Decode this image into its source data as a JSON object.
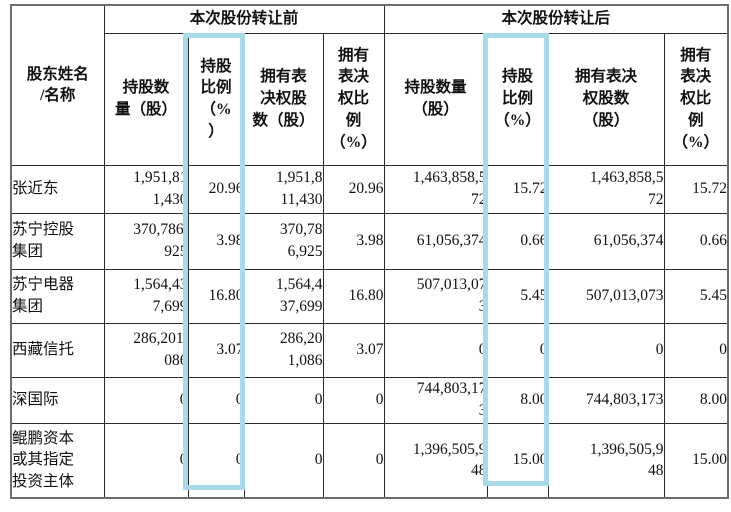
{
  "colors": {
    "highlight": "#a7dbe8"
  },
  "table": {
    "corner_header": "股东姓名\n/名称",
    "groups": [
      {
        "label": "本次股份转让前"
      },
      {
        "label": "本次股份转让后"
      }
    ],
    "columns": [
      "持股数\n量（股）",
      "持股\n比例\n（%\n）",
      "拥有表\n决权股\n数（股）",
      "拥有\n表决\n权比\n例\n（%）",
      "持股数量\n（股）",
      "持股\n比例\n（%）",
      "拥有表决\n权股数\n（股）",
      "拥有\n表决\n权比\n例\n（%）"
    ],
    "rows": [
      {
        "name": "张近东",
        "cells": [
          "1,951,81\n1,430",
          "20.96",
          "1,951,8\n11,430",
          "20.96",
          "1,463,858,5\n72",
          "15.72",
          "1,463,858,5\n72",
          "15.72"
        ]
      },
      {
        "name": "苏宁控股\n集团",
        "cells": [
          "370,786,\n925",
          "3.98",
          "370,78\n6,925",
          "3.98",
          "61,056,374",
          "0.66",
          "61,056,374",
          "0.66"
        ]
      },
      {
        "name": "苏宁电器\n集团",
        "cells": [
          "1,564,43\n7,699",
          "16.80",
          "1,564,4\n37,699",
          "16.80",
          "507,013,07\n3",
          "5.45",
          "507,013,073",
          "5.45"
        ]
      },
      {
        "name": "西藏信托",
        "cells": [
          "286,201,\n086",
          "3.07",
          "286,20\n1,086",
          "3.07",
          "0",
          "0",
          "0",
          "0"
        ]
      },
      {
        "name": "深国际",
        "cells": [
          "0",
          "0",
          "0",
          "0",
          "744,803,17\n3",
          "8.00",
          "744,803,173",
          "8.00"
        ]
      },
      {
        "name": "鲲鹏资本\n或其指定\n投资主体",
        "cells": [
          "0",
          "0",
          "0",
          "0",
          "1,396,505,9\n48",
          "15.00",
          "1,396,505,9\n48",
          "15.00"
        ]
      }
    ]
  }
}
